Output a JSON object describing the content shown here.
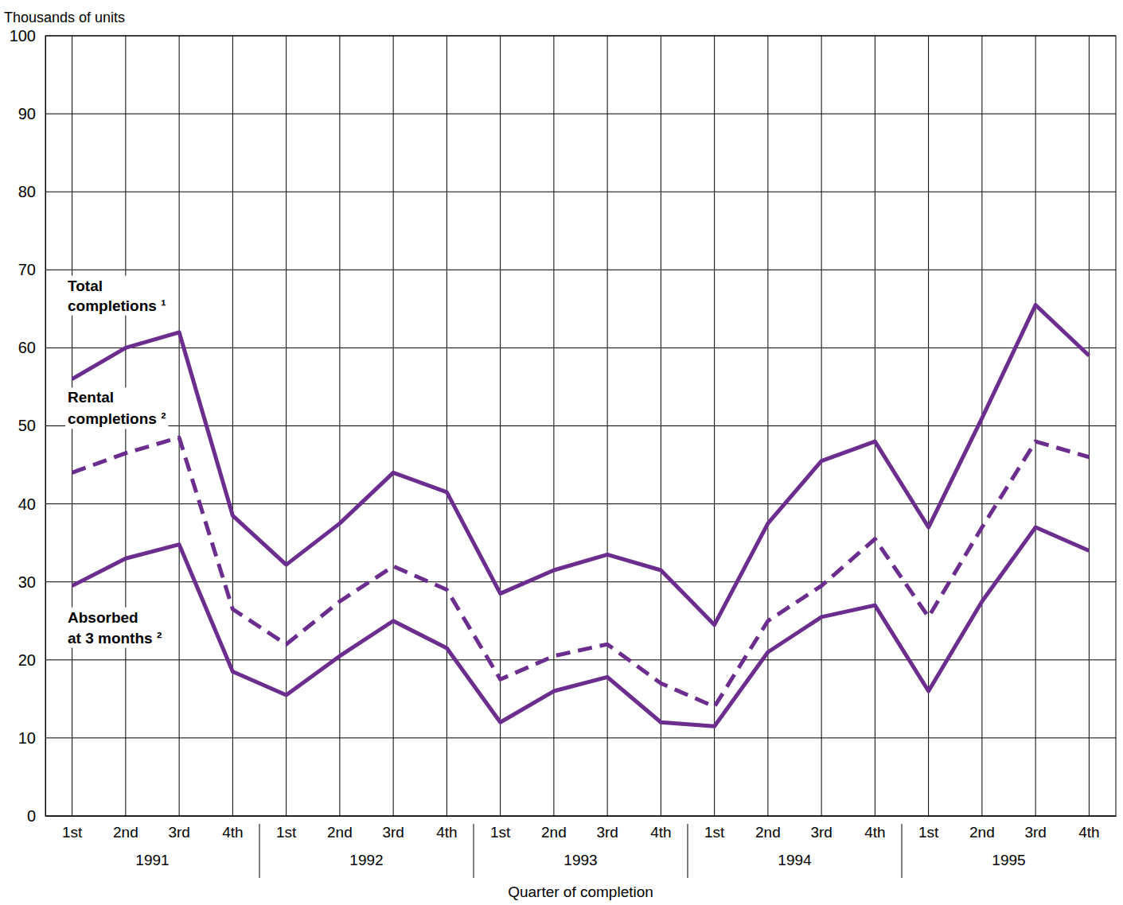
{
  "chart_data": {
    "type": "line",
    "y_label": "Thousands of units",
    "x_label": "Quarter of completion",
    "categories": [
      "1st",
      "2nd",
      "3rd",
      "4th",
      "1st",
      "2nd",
      "3rd",
      "4th",
      "1st",
      "2nd",
      "3rd",
      "4th",
      "1st",
      "2nd",
      "3rd",
      "4th",
      "1st",
      "2nd",
      "3rd",
      "4th"
    ],
    "groups": [
      "1991",
      "1992",
      "1993",
      "1994",
      "1995"
    ],
    "series": [
      {
        "name": "Total completions ¹",
        "color": "#6b2d8e",
        "line_style": "solid",
        "values": [
          56,
          60,
          62,
          38.5,
          32.2,
          37.5,
          44,
          41.5,
          28.5,
          31.5,
          33.5,
          31.5,
          24.5,
          37.5,
          45.5,
          48,
          37,
          51,
          65.5,
          59
        ]
      },
      {
        "name": "Rental completions ²",
        "color": "#6b2d8e",
        "line_style": "dashed",
        "values": [
          44,
          46.5,
          48.5,
          26.5,
          22,
          27.5,
          32,
          29,
          17.5,
          20.5,
          22,
          17,
          14,
          25,
          29.5,
          35.5,
          25.5,
          37,
          48,
          46
        ]
      },
      {
        "name": "Absorbed at 3 months ²",
        "color": "#6b2d8e",
        "line_style": "solid",
        "values": [
          29.5,
          33,
          34.8,
          18.5,
          15.5,
          20.5,
          25,
          21.5,
          12,
          16,
          17.8,
          12,
          11.5,
          21,
          25.5,
          27,
          16,
          27.5,
          37,
          34
        ]
      }
    ],
    "ylim": [
      0,
      100
    ],
    "yticks": [
      0,
      10,
      20,
      30,
      40,
      50,
      60,
      70,
      80,
      90,
      100
    ],
    "grid": true
  }
}
